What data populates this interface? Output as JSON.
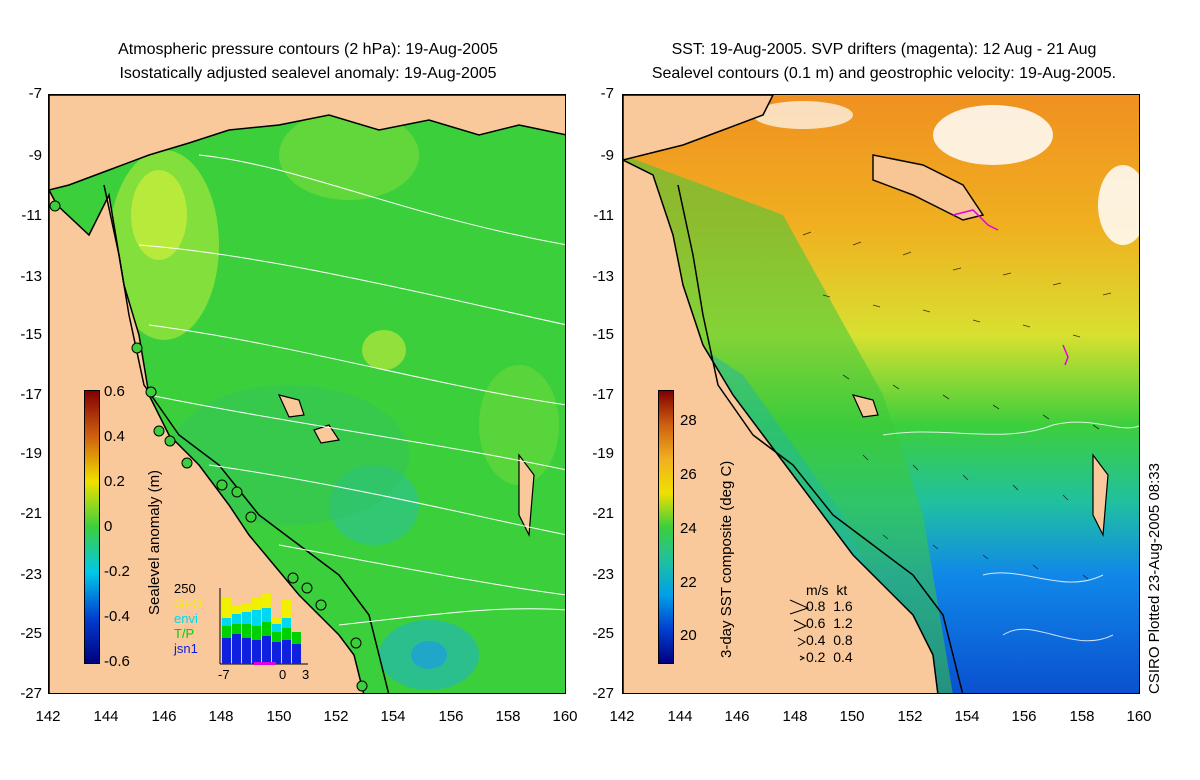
{
  "left_panel": {
    "title_line1": "Atmospheric pressure contours (2 hPa): 19-Aug-2005",
    "title_line2": "Isostatically adjusted sealevel anomaly: 19-Aug-2005",
    "colorbar_label": "Sealevel anomaly (m)",
    "colorbar_ticks": [
      "0.6",
      "0.4",
      "0.2",
      "0",
      "-0.2",
      "-0.4",
      "-0.6"
    ],
    "inset": {
      "ymax_label": "250",
      "legend": [
        {
          "label": "GFO",
          "color": "#f0f000"
        },
        {
          "label": "envi",
          "color": "#00d8f0"
        },
        {
          "label": "T/P",
          "color": "#00d000"
        },
        {
          "label": "jsn1",
          "color": "#1020e0"
        }
      ],
      "x_ticks": [
        "-7",
        "0",
        "3"
      ]
    }
  },
  "right_panel": {
    "title_line1": "SST: 19-Aug-2005. SVP drifters (magenta): 12 Aug - 21 Aug",
    "title_line2": "Sealevel contours (0.1 m) and geostrophic velocity: 19-Aug-2005.",
    "colorbar_label": "3-day SST composite (deg C)",
    "colorbar_ticks": [
      "28",
      "26",
      "24",
      "22",
      "20"
    ],
    "vector_legend_header": "m/s  kt",
    "vector_legend_rows": [
      "0.8  1.6",
      "0.6  1.2",
      "0.4  0.8",
      "0.2  0.4"
    ]
  },
  "y_axis_labels": [
    "-7",
    "-9",
    "-11",
    "-13",
    "-15",
    "-17",
    "-19",
    "-21",
    "-23",
    "-25",
    "-27"
  ],
  "x_axis_labels": [
    "142",
    "144",
    "146",
    "148",
    "150",
    "152",
    "154",
    "156",
    "158",
    "160"
  ],
  "credit": "CSIRO Plotted 23-Aug-2005 08:33",
  "colors": {
    "land": "#f9c89b",
    "sea_green": "#3ccf3c",
    "sst_orange": "#f0a020",
    "sst_blue": "#1070e0"
  }
}
